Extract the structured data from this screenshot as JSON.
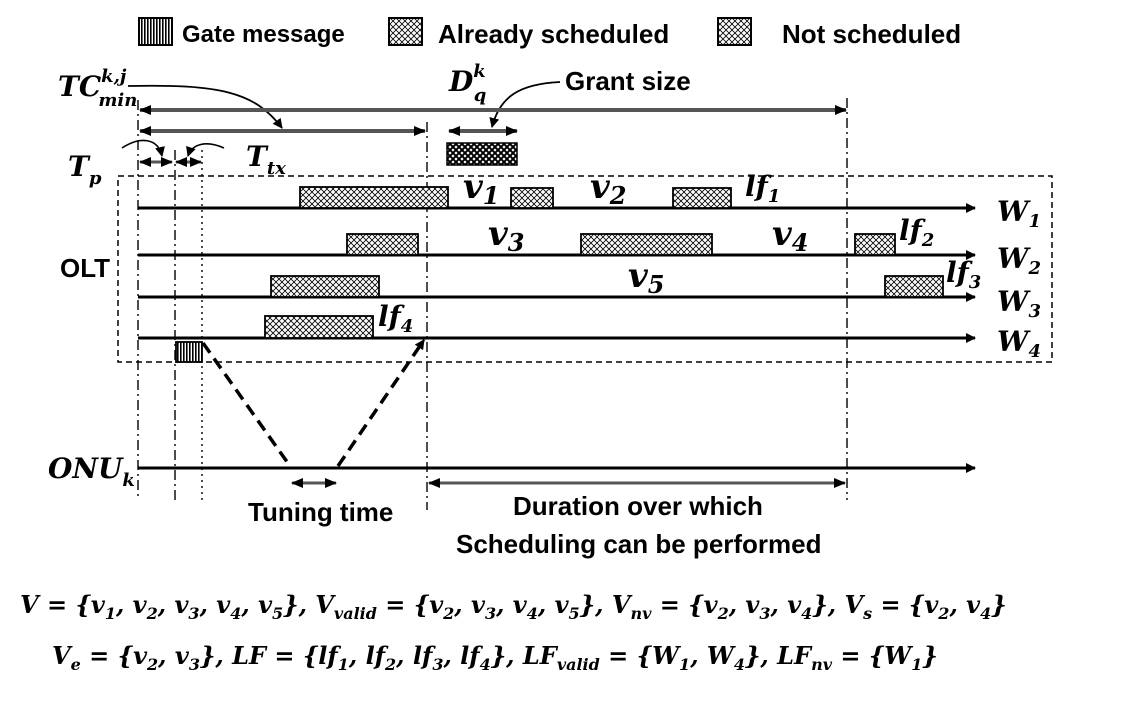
{
  "legend": {
    "gate": "Gate message",
    "already": "Already scheduled",
    "not": "Not scheduled"
  },
  "labels": {
    "tc_base": "TC",
    "tc_sup": "k,j",
    "tc_sub": "min",
    "d_base": "D",
    "d_sup": "k",
    "d_sub": "q",
    "grant": "Grant size",
    "tp_base": "T",
    "tp_sub": "p",
    "ttx_base": "T",
    "ttx_sub": "tx",
    "olt": "OLT",
    "onu_base": "ONU",
    "onu_sub": "k",
    "tuning": "Tuning time",
    "duration_line1": "Duration over which",
    "duration_line2": "Scheduling can be performed"
  },
  "wavelengths": [
    {
      "base": "W",
      "sub": "1"
    },
    {
      "base": "W",
      "sub": "2"
    },
    {
      "base": "W",
      "sub": "3"
    },
    {
      "base": "W",
      "sub": "4"
    }
  ],
  "voids": [
    {
      "base": "v",
      "sub": "1"
    },
    {
      "base": "v",
      "sub": "2"
    },
    {
      "base": "v",
      "sub": "3"
    },
    {
      "base": "v",
      "sub": "4"
    },
    {
      "base": "v",
      "sub": "5"
    }
  ],
  "last_free": [
    {
      "base": "lf",
      "sub": "1"
    },
    {
      "base": "lf",
      "sub": "2"
    },
    {
      "base": "lf",
      "sub": "3"
    },
    {
      "base": "lf",
      "sub": "4"
    }
  ],
  "equations": {
    "line1": [
      {
        "t": "V = {v"
      },
      {
        "s": "1"
      },
      {
        "t": ", v"
      },
      {
        "s": "2"
      },
      {
        "t": ", v"
      },
      {
        "s": "3"
      },
      {
        "t": ", v"
      },
      {
        "s": "4"
      },
      {
        "t": ", v"
      },
      {
        "s": "5"
      },
      {
        "t": "}, V"
      },
      {
        "s": "valid"
      },
      {
        "t": " = {v"
      },
      {
        "s": "2"
      },
      {
        "t": ", v"
      },
      {
        "s": "3"
      },
      {
        "t": ", v"
      },
      {
        "s": "4"
      },
      {
        "t": ", v"
      },
      {
        "s": "5"
      },
      {
        "t": "}, V"
      },
      {
        "s": "nv"
      },
      {
        "t": " = {v"
      },
      {
        "s": "2"
      },
      {
        "t": ", v"
      },
      {
        "s": "3"
      },
      {
        "t": ", v"
      },
      {
        "s": "4"
      },
      {
        "t": "}, V"
      },
      {
        "s": "s"
      },
      {
        "t": " = {v"
      },
      {
        "s": "2"
      },
      {
        "t": ", v"
      },
      {
        "s": "4"
      },
      {
        "t": "}"
      }
    ],
    "line2": [
      {
        "t": "V"
      },
      {
        "s": "e"
      },
      {
        "t": " = {v"
      },
      {
        "s": "2"
      },
      {
        "t": ", v"
      },
      {
        "s": "3"
      },
      {
        "t": "}, LF = {lf"
      },
      {
        "s": "1"
      },
      {
        "t": ", lf"
      },
      {
        "s": "2"
      },
      {
        "t": ", lf"
      },
      {
        "s": "3"
      },
      {
        "t": ", lf"
      },
      {
        "s": "4"
      },
      {
        "t": "}, LF"
      },
      {
        "s": "valid"
      },
      {
        "t": " = {W"
      },
      {
        "s": "1"
      },
      {
        "t": ", W"
      },
      {
        "s": "4"
      },
      {
        "t": "}, LF"
      },
      {
        "s": "nv"
      },
      {
        "t": " = {W"
      },
      {
        "s": "1"
      },
      {
        "t": "}"
      }
    ]
  }
}
